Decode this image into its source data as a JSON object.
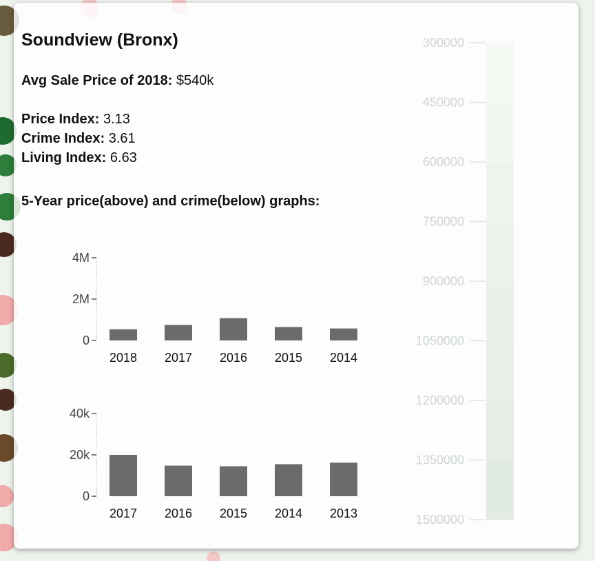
{
  "popup": {
    "neighborhood": "Soundview (Bronx)",
    "avg_sale_label": "Avg Sale Price of 2018:",
    "avg_sale_value": "$540k",
    "price_index_label": "Price Index:",
    "price_index_value": "3.13",
    "crime_index_label": "Crime Index:",
    "crime_index_value": "3.61",
    "living_index_label": "Living Index:",
    "living_index_value": "6.63",
    "graphs_heading": "5-Year price(above) and crime(below) graphs:"
  },
  "colors": {
    "bar": "#6b6b6b",
    "legend_light": "#f4f9f3",
    "legend_dark": "#e2ebe2"
  },
  "chart_data": [
    {
      "type": "bar",
      "categories": [
        "2018",
        "2017",
        "2016",
        "2015",
        "2014"
      ],
      "values": [
        540000,
        750000,
        1080000,
        650000,
        580000
      ],
      "ylim": [
        0,
        4000000
      ],
      "yticks": [
        0,
        2000000,
        4000000
      ],
      "ytick_labels": [
        "0",
        "2M",
        "4M"
      ],
      "title": "",
      "xlabel": "",
      "ylabel": ""
    },
    {
      "type": "bar",
      "categories": [
        "2017",
        "2016",
        "2015",
        "2014",
        "2013"
      ],
      "values": [
        20000,
        14800,
        14500,
        15500,
        16200
      ],
      "ylim": [
        0,
        40000
      ],
      "yticks": [
        0,
        20000,
        40000
      ],
      "ytick_labels": [
        "0",
        "20k",
        "40k"
      ],
      "title": "",
      "xlabel": "",
      "ylabel": ""
    },
    {
      "type": "heatmap",
      "legend_labels": [
        "300000",
        "450000",
        "600000",
        "750000",
        "900000",
        "1050000",
        "1200000",
        "1350000",
        "1500000"
      ],
      "legend_values": [
        300000,
        450000,
        600000,
        750000,
        900000,
        1050000,
        1200000,
        1350000,
        1500000
      ],
      "range": [
        300000,
        1500000
      ]
    }
  ]
}
